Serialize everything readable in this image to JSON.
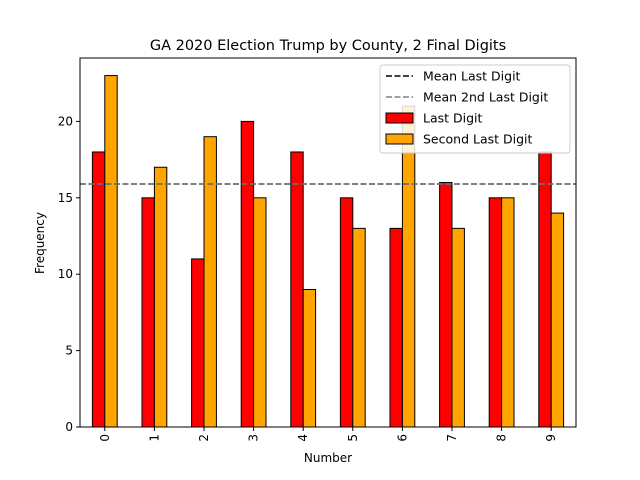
{
  "chart_data": {
    "type": "bar",
    "title": "GA 2020 Election Trump by County, 2 Final Digits",
    "xlabel": "Number",
    "ylabel": "Frequency",
    "categories": [
      "0",
      "1",
      "2",
      "3",
      "4",
      "5",
      "6",
      "7",
      "8",
      "9"
    ],
    "ylim": [
      0,
      24.15
    ],
    "yticks": [
      0,
      5,
      10,
      15,
      20
    ],
    "series": [
      {
        "name": "Last Digit",
        "color": "#ff0000",
        "values": [
          18,
          15,
          11,
          20,
          18,
          15,
          13,
          16,
          15,
          18
        ]
      },
      {
        "name": "Second Last Digit",
        "color": "#ffa500",
        "values": [
          23,
          17,
          19,
          15,
          9,
          13,
          21,
          13,
          15,
          14
        ]
      }
    ],
    "reference_lines": [
      {
        "name": "Mean Last Digit",
        "value": 15.9,
        "color": "#000000",
        "style": "dashed"
      },
      {
        "name": "Mean 2nd Last Digit",
        "value": 15.9,
        "color": "#808080",
        "style": "dashed"
      }
    ],
    "legend": {
      "position": "top-right",
      "entries": [
        "Mean Last Digit",
        "Mean 2nd Last Digit",
        "Last Digit",
        "Second Last Digit"
      ]
    },
    "grid": false
  }
}
